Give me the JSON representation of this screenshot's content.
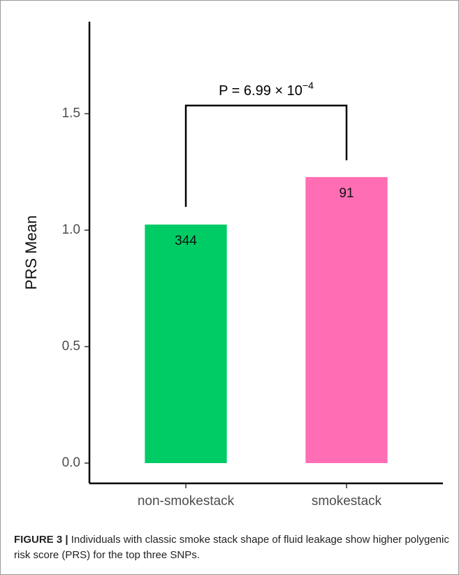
{
  "chart_data": {
    "type": "bar",
    "y_label": "PRS Mean",
    "categories": [
      "non-smokestack",
      "smokestack"
    ],
    "values": [
      1.024,
      1.228
    ],
    "colors": [
      "#00cc66",
      "#ff6eb4"
    ],
    "counts": [
      344,
      91
    ],
    "ylim": [
      -0.087,
      1.895
    ],
    "yticks": [
      {
        "value": 0,
        "label": "0.0"
      },
      0.5,
      {
        "value": 1,
        "label": "1.0"
      },
      1.5
    ],
    "annotation": {
      "text": "P = 6.99 × 10",
      "superscript": "−4",
      "left_end": 1.1,
      "right_end": 1.3,
      "top": 1.535
    }
  },
  "caption": {
    "label": "FIGURE 3 |",
    "text": "Individuals with classic smoke stack shape of fluid leakage show higher polygenic risk score (PRS) for the top three SNPs."
  }
}
